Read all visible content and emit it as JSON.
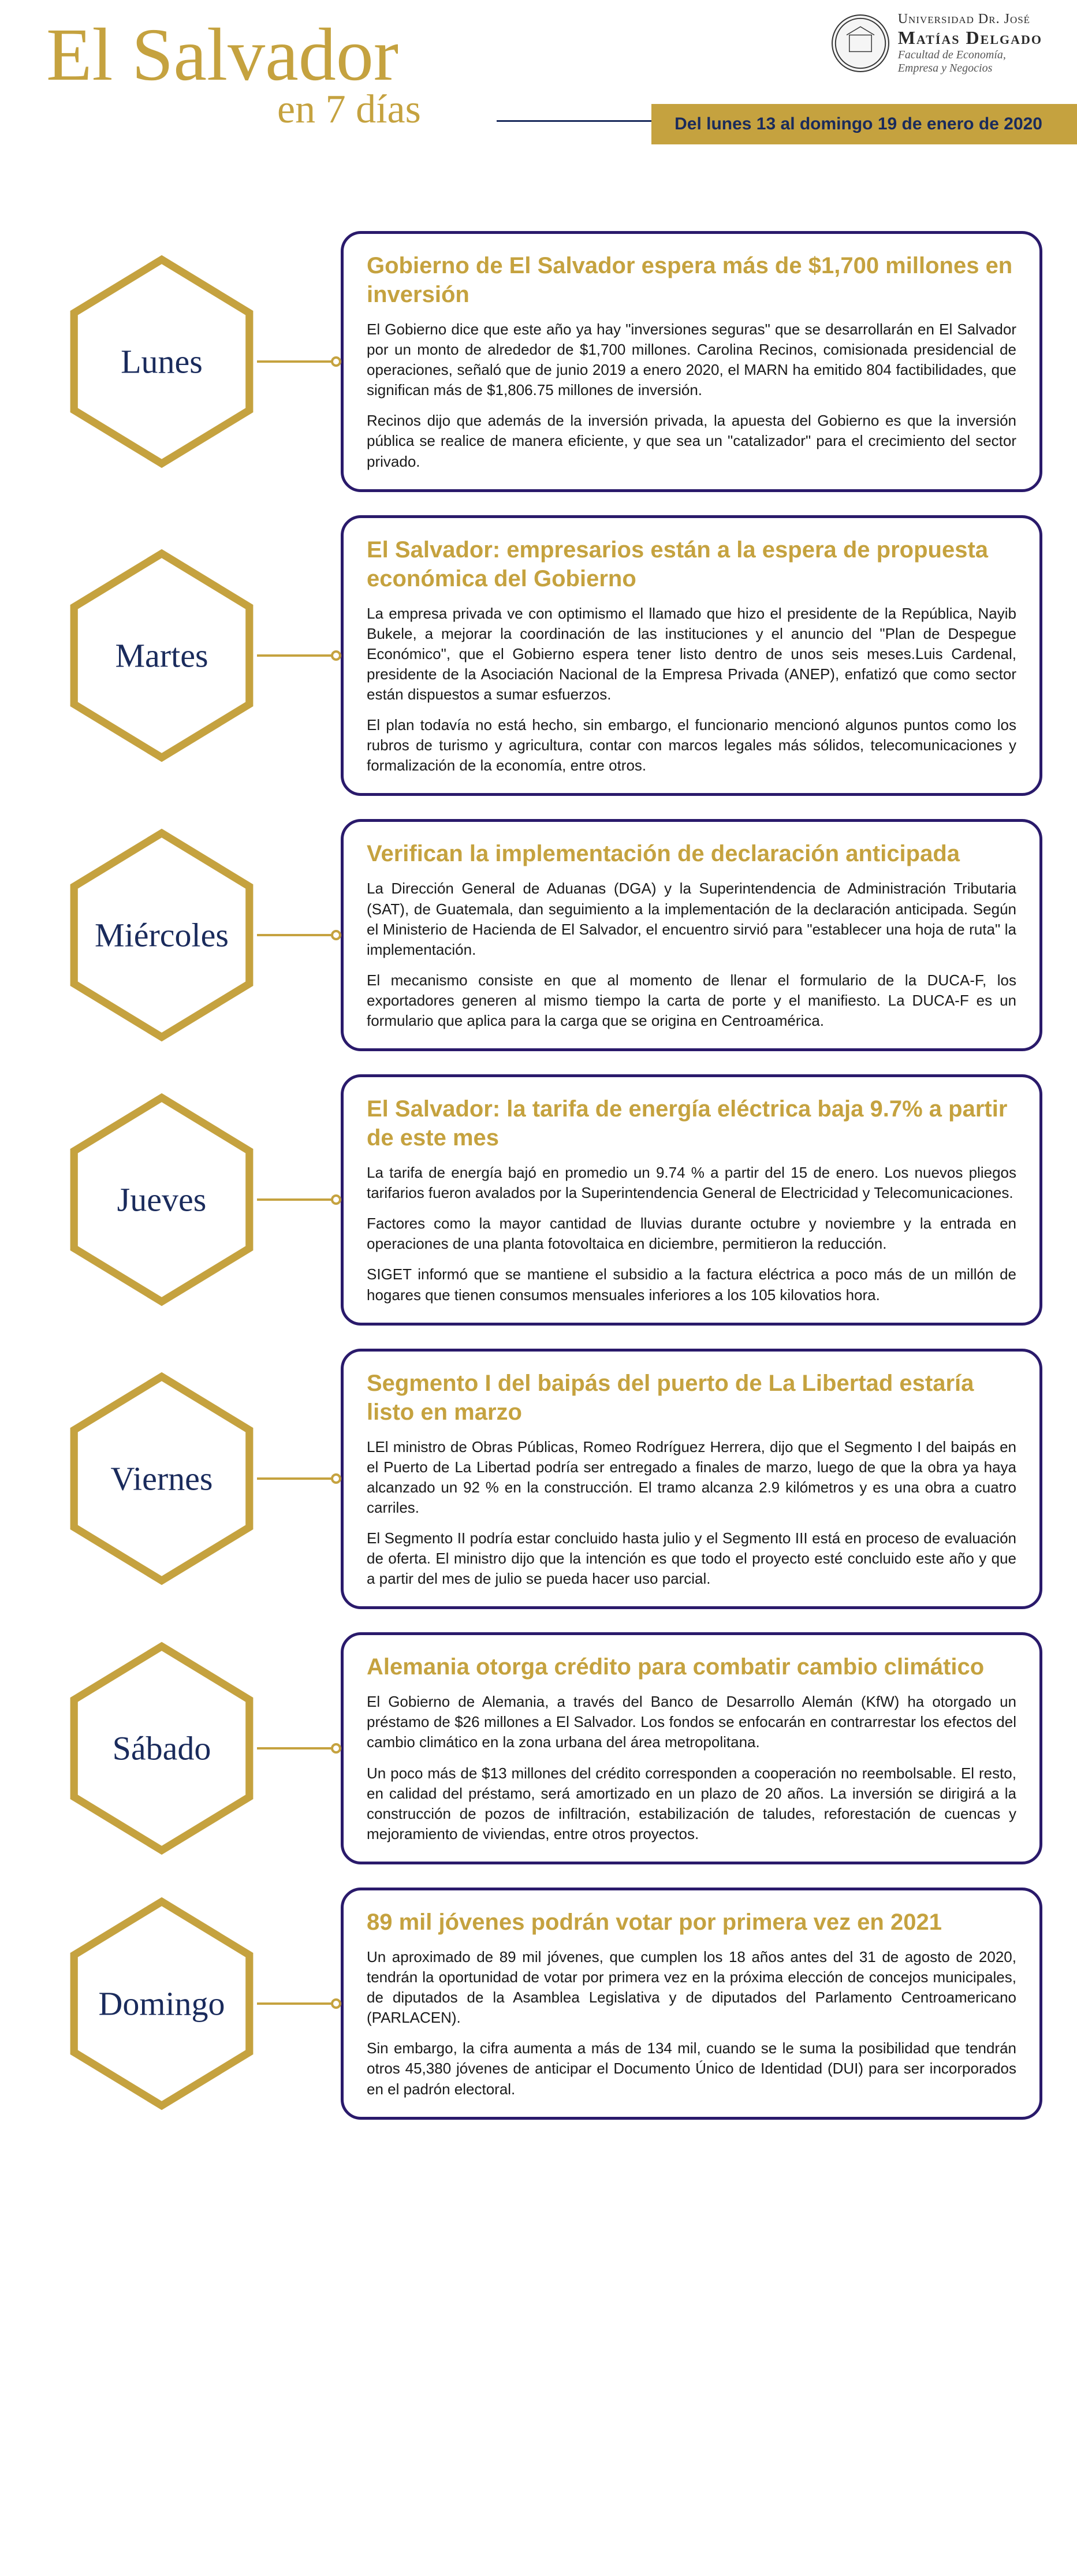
{
  "header": {
    "title": "El Salvador",
    "subtitle": "en 7 días",
    "university": {
      "line1": "Universidad Dr. José",
      "line2": "Matías Delgado",
      "faculty1": "Facultad de Economía,",
      "faculty2": "Empresa y Negocios"
    },
    "date_banner": "Del lunes 13 al domingo 19 de enero de 2020"
  },
  "colors": {
    "gold": "#c5a23f",
    "navy": "#1a2b5c",
    "box_border": "#2a1a6b",
    "text": "#1a1a1a"
  },
  "days": [
    {
      "day": "Lunes",
      "title": "Gobierno de El Salvador espera más de $1,700 millones en inversión",
      "p1": "El Gobierno dice que este año ya hay \"inversiones seguras\" que se desarrollarán en El Salvador por un monto de alrededor de $1,700 millones. Carolina Recinos, comisionada presidencial de operaciones, señaló que de junio 2019 a enero 2020, el MARN ha emitido 804 factibilidades, que significan más de $1,806.75 millones de inversión.",
      "p2": "Recinos dijo que además de la inversión privada, la apuesta del Gobierno es que la inversión pública se realice de manera eficiente, y que sea un \"catalizador\" para el crecimiento del sector privado."
    },
    {
      "day": "Martes",
      "title": "El Salvador: empresarios están a la espera de propuesta económica del Gobierno",
      "p1": "La empresa privada ve con optimismo el llamado que hizo el presidente de la República, Nayib Bukele, a mejorar la coordinación de las instituciones y el anuncio del \"Plan de Despegue Económico\", que el Gobierno espera tener listo dentro de unos seis meses.Luis Cardenal, presidente de la Asociación Nacional de la Empresa Privada (ANEP), enfatizó que como sector están dispuestos a sumar esfuerzos.",
      "p2": "El plan todavía no está hecho, sin embargo, el funcionario mencionó algunos puntos como los rubros de turismo y agricultura, contar con marcos legales más sólidos, telecomunicaciones y formalización de la economía, entre otros."
    },
    {
      "day": "Miércoles",
      "title": "Verifican la implementación de declaración anticipada",
      "p1": "La Dirección General de Aduanas (DGA) y la Superintendencia de Administración Tributaria (SAT), de Guatemala, dan seguimiento a la implementación de la declaración anticipada. Según el Ministerio de Hacienda de El Salvador, el encuentro sirvió para \"establecer una hoja de ruta\" la implementación.",
      "p2": "El mecanismo consiste en que al momento de llenar el formulario de la DUCA-F, los exportadores generen al mismo tiempo la carta de porte y el manifiesto. La DUCA-F es un formulario que aplica para la carga que se origina en Centroamérica."
    },
    {
      "day": "Jueves",
      "title": "El Salvador: la tarifa de energía eléctrica baja 9.7% a partir de este mes",
      "p1": "La tarifa de energía bajó en promedio un 9.74 % a partir del 15 de enero. Los nuevos pliegos tarifarios fueron avalados por la Superintendencia General de Electricidad y Telecomunicaciones.",
      "p2": "Factores como la mayor cantidad de lluvias durante octubre y noviembre y la entrada en operaciones de una planta fotovoltaica en diciembre, permitieron la reducción.",
      "p3": "SIGET informó que se mantiene el subsidio a la factura eléctrica a poco más de un millón de hogares que tienen consumos mensuales inferiores a los 105 kilovatios hora."
    },
    {
      "day": "Viernes",
      "title": "Segmento I del baipás del puerto de La Libertad estaría listo en marzo",
      "p1": "LEl ministro de Obras Públicas, Romeo Rodríguez Herrera, dijo que el Segmento I del baipás en el Puerto de La Libertad podría ser entregado a finales de marzo, luego de que la obra ya haya alcanzado un 92 % en la construcción. El tramo alcanza 2.9 kilómetros y es una obra a cuatro carriles.",
      "p2": "El Segmento II podría estar concluido hasta julio y el Segmento III está en proceso de evaluación de oferta. El ministro dijo que la intención es que todo el proyecto esté concluido este año y que a partir del mes de julio se pueda hacer uso parcial."
    },
    {
      "day": "Sábado",
      "title": "Alemania otorga crédito para combatir cambio climático",
      "p1": "El Gobierno de Alemania, a través del Banco de Desarrollo Alemán (KfW) ha otorgado un préstamo de $26 millones a El Salvador. Los fondos se enfocarán en contrarrestar los efectos del cambio climático en la zona urbana del área metropolitana.",
      "p2": "Un poco más de $13 millones del crédito corresponden a cooperación no reembolsable. El resto, en calidad del préstamo, será amortizado en un plazo de 20 años. La inversión se dirigirá a la construcción de pozos de infiltración, estabilización de taludes, reforestación de cuencas y mejoramiento de viviendas, entre otros proyectos."
    },
    {
      "day": "Domingo",
      "title": "89 mil jóvenes podrán votar por primera vez en 2021",
      "p1": "Un aproximado de 89 mil jóvenes, que cumplen los 18 años antes del 31 de agosto de 2020, tendrán la oportunidad de votar por primera vez en la próxima elección de concejos municipales, de diputados de la Asamblea Legislativa y de diputados del Parlamento Centroamericano (PARLACEN).",
      "p2": "Sin embargo, la cifra aumenta a más de 134 mil, cuando se le suma la posibilidad que tendrán otros 45,380 jóvenes de anticipar el Documento Único de Identidad (DUI) para ser incorporados en el padrón electoral."
    }
  ]
}
